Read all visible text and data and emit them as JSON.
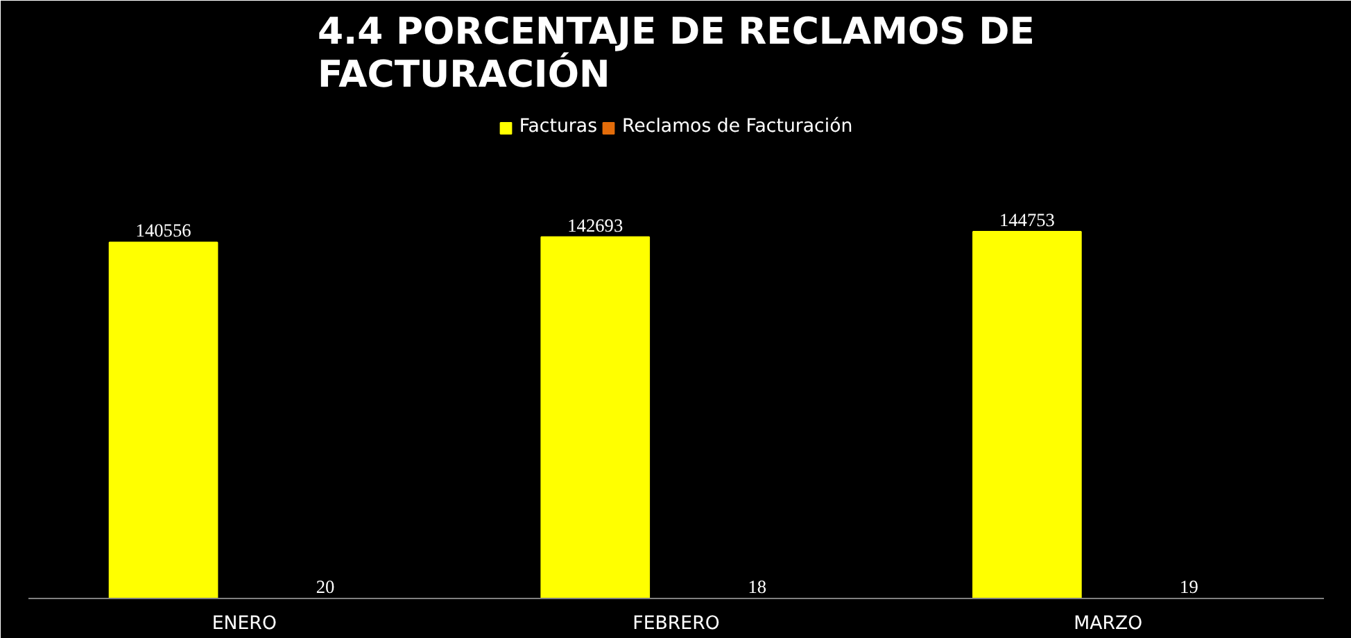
{
  "chart_data": {
    "type": "bar",
    "title": "4.4 PORCENTAJE DE RECLAMOS DE\nFACTURACIÓN",
    "categories": [
      "ENERO",
      "FEBRERO",
      "MARZO"
    ],
    "series": [
      {
        "name": "Facturas",
        "color": "#ffff00",
        "values": [
          140556,
          142693,
          144753
        ]
      },
      {
        "name": "Reclamos de Facturación",
        "color": "#e36c0a",
        "values": [
          20,
          18,
          19
        ]
      }
    ],
    "data_labels": true,
    "legend": "top",
    "grid": false
  }
}
